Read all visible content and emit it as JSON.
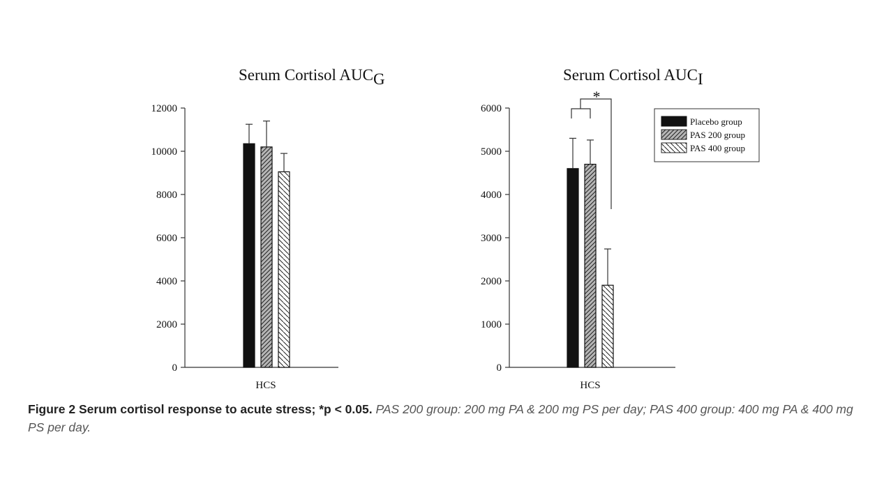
{
  "chart_data": [
    {
      "type": "bar",
      "title": "Serum Cortisol AUC",
      "title_subscript": "G",
      "categories": [
        "HCS"
      ],
      "series": [
        {
          "name": "Placebo group",
          "values": [
            10350
          ],
          "error": [
            900
          ]
        },
        {
          "name": "PAS 200 group",
          "values": [
            10200
          ],
          "error": [
            1200
          ]
        },
        {
          "name": "PAS 400 group",
          "values": [
            9050
          ],
          "error": [
            850
          ]
        }
      ],
      "ylim": [
        0,
        12000
      ],
      "yticks": [
        "0",
        "2000",
        "4000",
        "6000",
        "8000",
        "10000",
        "12000"
      ],
      "legend": "none",
      "grid": false
    },
    {
      "type": "bar",
      "title": "Serum Cortisol AUC",
      "title_subscript": "I",
      "categories": [
        "HCS"
      ],
      "series": [
        {
          "name": "Placebo group",
          "values": [
            4600
          ],
          "error": [
            700
          ]
        },
        {
          "name": "PAS 200 group",
          "values": [
            4700
          ],
          "error": [
            560
          ]
        },
        {
          "name": "PAS 400 group",
          "values": [
            1900
          ],
          "error": [
            840
          ]
        }
      ],
      "ylim": [
        0,
        6000
      ],
      "yticks": [
        "0",
        "1000",
        "2000",
        "3000",
        "4000",
        "5000",
        "6000"
      ],
      "legend": "top-right",
      "annotation": "*",
      "grid": false
    }
  ],
  "series_styles": [
    {
      "fill": "solid",
      "color": "#111111"
    },
    {
      "fill": "hatch-forward",
      "color": "#9a9a9a"
    },
    {
      "fill": "hatch-back",
      "color": "#ffffff"
    }
  ],
  "caption": {
    "label": "Figure 2",
    "title": "Serum cortisol response to acute stress; *p < 0.05.",
    "text": "PAS 200 group: 200 mg PA & 200 mg PS per day; PAS 400 group: 400 mg PA & 400 mg PS per day."
  }
}
